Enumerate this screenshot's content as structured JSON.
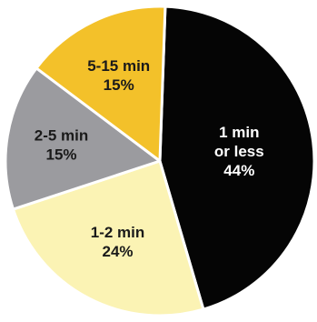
{
  "chart_data": {
    "type": "pie",
    "title": "",
    "start_angle_deg": 2,
    "direction": "clockwise",
    "slices": [
      {
        "label_lines": [
          "1 min",
          "or less"
        ],
        "value_text": "44%",
        "value": 44,
        "color": "#050505",
        "text_color": "#ffffff"
      },
      {
        "label_lines": [
          "1-2 min"
        ],
        "value_text": "24%",
        "value": 24,
        "color": "#fbf3b4",
        "text_color": "#1a1a1a"
      },
      {
        "label_lines": [
          "2-5 min"
        ],
        "value_text": "15%",
        "value": 15,
        "color": "#9b9b9f",
        "text_color": "#1a1a1a"
      },
      {
        "label_lines": [
          "5-15 min"
        ],
        "value_text": "15%",
        "value": 15,
        "color": "#f3c12a",
        "text_color": "#1a1a1a"
      }
    ]
  }
}
